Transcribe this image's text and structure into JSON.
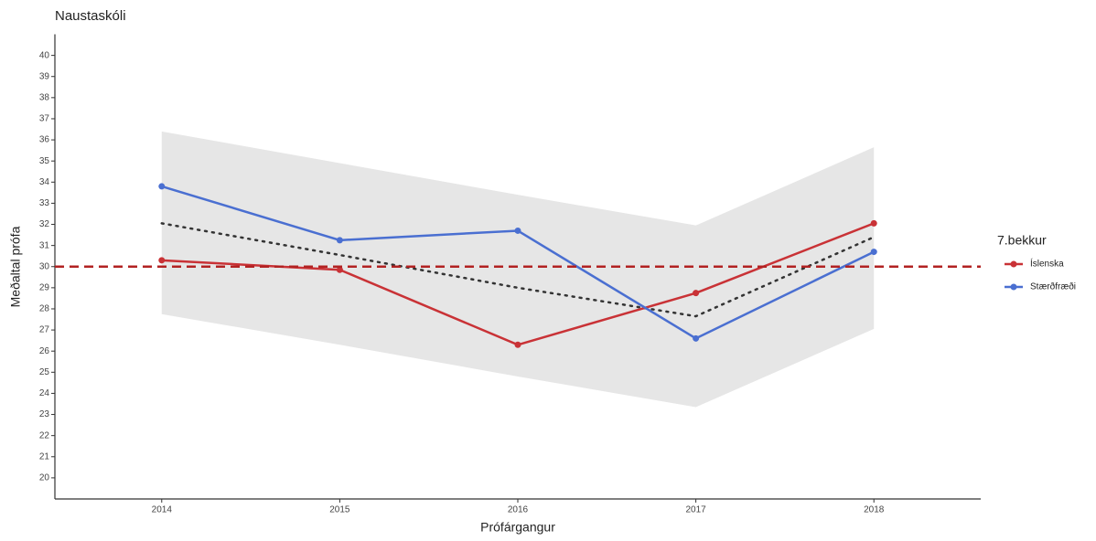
{
  "chart_data": {
    "type": "line",
    "title": "Naustaskóli",
    "x_label": "Prófárgangur",
    "y_label": "Meðaltal prófa",
    "legend_title": "7.bekkur",
    "x": [
      2014,
      2015,
      2016,
      2017,
      2018
    ],
    "series": [
      {
        "name": "Íslenska",
        "color": "#c93236",
        "values": [
          30.3,
          29.85,
          26.3,
          28.75,
          32.05
        ]
      },
      {
        "name": "Stærðfræði",
        "color": "#4a6fd1",
        "values": [
          33.8,
          31.25,
          31.7,
          26.6,
          30.7
        ]
      }
    ],
    "trend": {
      "color": "#333333",
      "values": [
        32.05,
        30.55,
        29.0,
        27.65,
        31.4
      ]
    },
    "ribbon": {
      "color": "#e6e6e6",
      "upper": [
        36.4,
        34.9,
        33.4,
        31.95,
        35.65
      ],
      "lower": [
        27.75,
        26.3,
        24.8,
        23.35,
        27.05
      ]
    },
    "reference_line": {
      "value": 30,
      "color": "#b22222"
    },
    "xlim": [
      2013.4,
      2018.6
    ],
    "ylim": [
      19,
      41
    ],
    "xticks": [
      2014,
      2015,
      2016,
      2017,
      2018
    ],
    "yticks": [
      20,
      21,
      22,
      23,
      24,
      25,
      26,
      27,
      28,
      29,
      30,
      31,
      32,
      33,
      34,
      35,
      36,
      37,
      38,
      39,
      40
    ],
    "grid": false,
    "legend_position": "right"
  }
}
